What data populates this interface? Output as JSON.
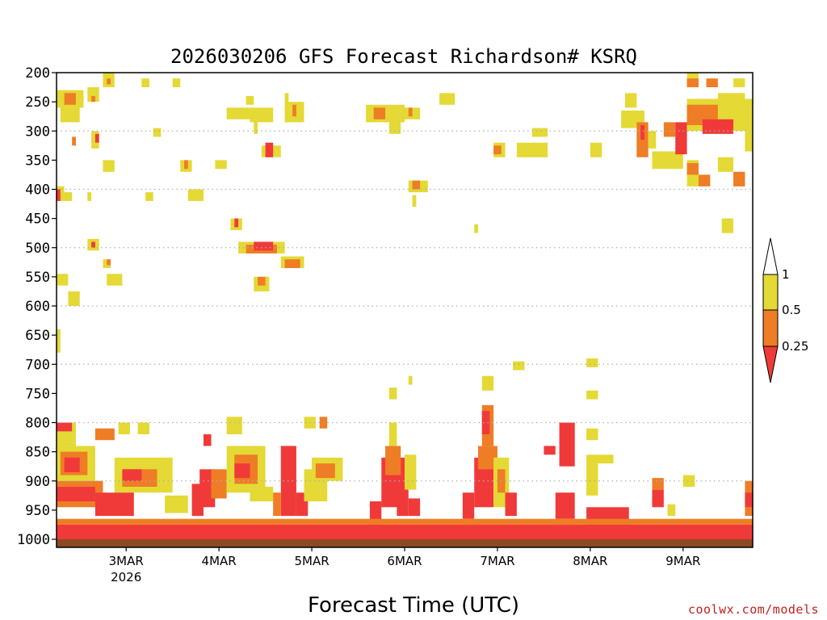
{
  "chart_data": {
    "type": "heatmap",
    "title": "2026030206 GFS Forecast Richardson# KSRQ",
    "xlabel": "Forecast Time (UTC)",
    "ylabel": "",
    "x_unit": "hours since 2026-03-02 06 UTC",
    "xlim": [
      0,
      180
    ],
    "x_ticks": [
      {
        "hour": 18,
        "label": "3MAR",
        "sub": "2026"
      },
      {
        "hour": 42,
        "label": "4MAR",
        "sub": ""
      },
      {
        "hour": 66,
        "label": "5MAR",
        "sub": ""
      },
      {
        "hour": 90,
        "label": "6MAR",
        "sub": ""
      },
      {
        "hour": 114,
        "label": "7MAR",
        "sub": ""
      },
      {
        "hour": 138,
        "label": "8MAR",
        "sub": ""
      },
      {
        "hour": 162,
        "label": "9MAR",
        "sub": ""
      }
    ],
    "y_unit": "hPa",
    "ylim": [
      200,
      1000
    ],
    "y_levels": [
      200,
      250,
      300,
      350,
      400,
      450,
      500,
      550,
      600,
      650,
      700,
      750,
      800,
      850,
      900,
      950,
      1000
    ],
    "y_gridlines": [
      300,
      400,
      500,
      600,
      700,
      800,
      900
    ],
    "legend": {
      "position": "right",
      "bins": [
        {
          "range": "< 0.25",
          "color": "#f03a3a"
        },
        {
          "range": "0.25 - 0.5",
          "color": "#ee7d26"
        },
        {
          "range": "0.5 - 1",
          "color": "#e4d935"
        },
        {
          "range": "> 1",
          "color": "#ffffff"
        }
      ],
      "labels": [
        "1",
        "0.5",
        "0.25"
      ]
    },
    "ground_color": "#8b4a24",
    "cells": [
      {
        "x0": 12,
        "x1": 15,
        "p0": 200,
        "p1": 225,
        "bin": "y"
      },
      {
        "x0": 13,
        "x1": 14,
        "p0": 210,
        "p1": 220,
        "bin": "o"
      },
      {
        "x0": 22,
        "x1": 24,
        "p0": 210,
        "p1": 225,
        "bin": "y"
      },
      {
        "x0": 30,
        "x1": 32,
        "p0": 210,
        "p1": 225,
        "bin": "y"
      },
      {
        "x0": 0,
        "x1": 7,
        "p0": 230,
        "p1": 260,
        "bin": "y"
      },
      {
        "x0": 2,
        "x1": 5,
        "p0": 235,
        "p1": 255,
        "bin": "o"
      },
      {
        "x0": 1,
        "x1": 6,
        "p0": 260,
        "p1": 285,
        "bin": "y"
      },
      {
        "x0": 8,
        "x1": 11,
        "p0": 225,
        "p1": 250,
        "bin": "y"
      },
      {
        "x0": 9,
        "x1": 10,
        "p0": 240,
        "p1": 250,
        "bin": "o"
      },
      {
        "x0": 25,
        "x1": 27,
        "p0": 295,
        "p1": 310,
        "bin": "y"
      },
      {
        "x0": 59,
        "x1": 60,
        "p0": 235,
        "p1": 250,
        "bin": "y"
      },
      {
        "x0": 59,
        "x1": 64,
        "p0": 250,
        "p1": 285,
        "bin": "y"
      },
      {
        "x0": 61,
        "x1": 62,
        "p0": 255,
        "p1": 275,
        "bin": "o"
      },
      {
        "x0": 44,
        "x1": 50,
        "p0": 260,
        "p1": 280,
        "bin": "y"
      },
      {
        "x0": 49,
        "x1": 51,
        "p0": 240,
        "p1": 255,
        "bin": "y"
      },
      {
        "x0": 50,
        "x1": 56,
        "p0": 260,
        "p1": 285,
        "bin": "y"
      },
      {
        "x0": 51,
        "x1": 52,
        "p0": 285,
        "p1": 305,
        "bin": "y"
      },
      {
        "x0": 53,
        "x1": 58,
        "p0": 325,
        "p1": 345,
        "bin": "y"
      },
      {
        "x0": 54,
        "x1": 56,
        "p0": 320,
        "p1": 345,
        "bin": "r"
      },
      {
        "x0": 80,
        "x1": 90,
        "p0": 255,
        "p1": 285,
        "bin": "y"
      },
      {
        "x0": 82,
        "x1": 85,
        "p0": 260,
        "p1": 280,
        "bin": "o"
      },
      {
        "x0": 86,
        "x1": 89,
        "p0": 285,
        "p1": 305,
        "bin": "y"
      },
      {
        "x0": 88,
        "x1": 94,
        "p0": 260,
        "p1": 280,
        "bin": "y"
      },
      {
        "x0": 91,
        "x1": 92,
        "p0": 260,
        "p1": 275,
        "bin": "o"
      },
      {
        "x0": 99,
        "x1": 103,
        "p0": 235,
        "p1": 255,
        "bin": "y"
      },
      {
        "x0": 123,
        "x1": 127,
        "p0": 295,
        "p1": 310,
        "bin": "y"
      },
      {
        "x0": 113,
        "x1": 116,
        "p0": 320,
        "p1": 345,
        "bin": "y"
      },
      {
        "x0": 113,
        "x1": 115,
        "p0": 325,
        "p1": 340,
        "bin": "o"
      },
      {
        "x0": 119,
        "x1": 127,
        "p0": 320,
        "p1": 345,
        "bin": "y"
      },
      {
        "x0": 138,
        "x1": 141,
        "p0": 320,
        "p1": 345,
        "bin": "y"
      },
      {
        "x0": 147,
        "x1": 150,
        "p0": 235,
        "p1": 260,
        "bin": "y"
      },
      {
        "x0": 146,
        "x1": 152,
        "p0": 265,
        "p1": 295,
        "bin": "y"
      },
      {
        "x0": 150,
        "x1": 153,
        "p0": 285,
        "p1": 345,
        "bin": "o"
      },
      {
        "x0": 151,
        "x1": 152,
        "p0": 290,
        "p1": 315,
        "bin": "r"
      },
      {
        "x0": 153,
        "x1": 155,
        "p0": 300,
        "p1": 330,
        "bin": "y"
      },
      {
        "x0": 154,
        "x1": 162,
        "p0": 335,
        "p1": 365,
        "bin": "y"
      },
      {
        "x0": 157,
        "x1": 160,
        "p0": 285,
        "p1": 310,
        "bin": "o"
      },
      {
        "x0": 160,
        "x1": 163,
        "p0": 285,
        "p1": 340,
        "bin": "r"
      },
      {
        "x0": 163,
        "x1": 180,
        "p0": 245,
        "p1": 300,
        "bin": "y"
      },
      {
        "x0": 163,
        "x1": 171,
        "p0": 255,
        "p1": 290,
        "bin": "o"
      },
      {
        "x0": 167,
        "x1": 175,
        "p0": 280,
        "p1": 305,
        "bin": "r"
      },
      {
        "x0": 163,
        "x1": 166,
        "p0": 200,
        "p1": 225,
        "bin": "y"
      },
      {
        "x0": 163,
        "x1": 166,
        "p0": 210,
        "p1": 225,
        "bin": "o"
      },
      {
        "x0": 168,
        "x1": 171,
        "p0": 210,
        "p1": 225,
        "bin": "o"
      },
      {
        "x0": 171,
        "x1": 178,
        "p0": 235,
        "p1": 255,
        "bin": "y"
      },
      {
        "x0": 175,
        "x1": 178,
        "p0": 210,
        "p1": 225,
        "bin": "y"
      },
      {
        "x0": 163,
        "x1": 166,
        "p0": 350,
        "p1": 395,
        "bin": "y"
      },
      {
        "x0": 163,
        "x1": 166,
        "p0": 355,
        "p1": 375,
        "bin": "o"
      },
      {
        "x0": 166,
        "x1": 169,
        "p0": 375,
        "p1": 395,
        "bin": "o"
      },
      {
        "x0": 171,
        "x1": 175,
        "p0": 345,
        "p1": 370,
        "bin": "y"
      },
      {
        "x0": 175,
        "x1": 178,
        "p0": 370,
        "p1": 395,
        "bin": "o"
      },
      {
        "x0": 172,
        "x1": 175,
        "p0": 450,
        "p1": 475,
        "bin": "y"
      },
      {
        "x0": 178,
        "x1": 180,
        "p0": 300,
        "p1": 335,
        "bin": "y"
      },
      {
        "x0": 9,
        "x1": 11,
        "p0": 300,
        "p1": 330,
        "bin": "y"
      },
      {
        "x0": 10,
        "x1": 11,
        "p0": 305,
        "p1": 320,
        "bin": "r"
      },
      {
        "x0": 4,
        "x1": 5,
        "p0": 310,
        "p1": 325,
        "bin": "o"
      },
      {
        "x0": 12,
        "x1": 15,
        "p0": 350,
        "p1": 370,
        "bin": "y"
      },
      {
        "x0": 32,
        "x1": 35,
        "p0": 350,
        "p1": 370,
        "bin": "y"
      },
      {
        "x0": 33,
        "x1": 34,
        "p0": 350,
        "p1": 365,
        "bin": "o"
      },
      {
        "x0": 41,
        "x1": 44,
        "p0": 350,
        "p1": 365,
        "bin": "y"
      },
      {
        "x0": 34,
        "x1": 38,
        "p0": 400,
        "p1": 420,
        "bin": "y"
      },
      {
        "x0": 23,
        "x1": 25,
        "p0": 405,
        "p1": 420,
        "bin": "y"
      },
      {
        "x0": 0,
        "x1": 2,
        "p0": 395,
        "p1": 420,
        "bin": "y"
      },
      {
        "x0": 0,
        "x1": 1,
        "p0": 400,
        "p1": 420,
        "bin": "r"
      },
      {
        "x0": 2,
        "x1": 4,
        "p0": 405,
        "p1": 420,
        "bin": "y"
      },
      {
        "x0": 8,
        "x1": 9,
        "p0": 405,
        "p1": 420,
        "bin": "y"
      },
      {
        "x0": 45,
        "x1": 48,
        "p0": 450,
        "p1": 470,
        "bin": "y"
      },
      {
        "x0": 46,
        "x1": 47,
        "p0": 450,
        "p1": 465,
        "bin": "r"
      },
      {
        "x0": 47,
        "x1": 59,
        "p0": 490,
        "p1": 510,
        "bin": "y"
      },
      {
        "x0": 49,
        "x1": 57,
        "p0": 495,
        "p1": 510,
        "bin": "o"
      },
      {
        "x0": 51,
        "x1": 56,
        "p0": 490,
        "p1": 505,
        "bin": "r"
      },
      {
        "x0": 58,
        "x1": 64,
        "p0": 515,
        "p1": 535,
        "bin": "y"
      },
      {
        "x0": 59,
        "x1": 63,
        "p0": 520,
        "p1": 535,
        "bin": "o"
      },
      {
        "x0": 51,
        "x1": 55,
        "p0": 550,
        "p1": 575,
        "bin": "y"
      },
      {
        "x0": 52,
        "x1": 54,
        "p0": 550,
        "p1": 565,
        "bin": "o"
      },
      {
        "x0": 8,
        "x1": 11,
        "p0": 485,
        "p1": 505,
        "bin": "y"
      },
      {
        "x0": 9,
        "x1": 10,
        "p0": 490,
        "p1": 500,
        "bin": "r"
      },
      {
        "x0": 12,
        "x1": 14,
        "p0": 520,
        "p1": 535,
        "bin": "y"
      },
      {
        "x0": 13,
        "x1": 14,
        "p0": 520,
        "p1": 530,
        "bin": "o"
      },
      {
        "x0": 13,
        "x1": 17,
        "p0": 545,
        "p1": 565,
        "bin": "y"
      },
      {
        "x0": 0,
        "x1": 3,
        "p0": 545,
        "p1": 565,
        "bin": "y"
      },
      {
        "x0": 3,
        "x1": 6,
        "p0": 575,
        "p1": 600,
        "bin": "y"
      },
      {
        "x0": 91,
        "x1": 96,
        "p0": 385,
        "p1": 405,
        "bin": "y"
      },
      {
        "x0": 92,
        "x1": 94,
        "p0": 385,
        "p1": 400,
        "bin": "o"
      },
      {
        "x0": 92,
        "x1": 93,
        "p0": 410,
        "p1": 430,
        "bin": "y"
      },
      {
        "x0": 108,
        "x1": 109,
        "p0": 460,
        "p1": 475,
        "bin": "y"
      },
      {
        "x0": 118,
        "x1": 121,
        "p0": 695,
        "p1": 710,
        "bin": "y"
      },
      {
        "x0": 137,
        "x1": 140,
        "p0": 690,
        "p1": 705,
        "bin": "y"
      },
      {
        "x0": 137,
        "x1": 140,
        "p0": 745,
        "p1": 760,
        "bin": "y"
      },
      {
        "x0": 110,
        "x1": 113,
        "p0": 720,
        "p1": 745,
        "bin": "y"
      },
      {
        "x0": 91,
        "x1": 92,
        "p0": 720,
        "p1": 735,
        "bin": "y"
      },
      {
        "x0": 0,
        "x1": 1,
        "p0": 640,
        "p1": 680,
        "bin": "y"
      },
      {
        "x0": 0,
        "x1": 5,
        "p0": 800,
        "p1": 840,
        "bin": "y"
      },
      {
        "x0": 0,
        "x1": 4,
        "p0": 800,
        "p1": 815,
        "bin": "r"
      },
      {
        "x0": 0,
        "x1": 10,
        "p0": 840,
        "p1": 900,
        "bin": "y"
      },
      {
        "x0": 1,
        "x1": 8,
        "p0": 850,
        "p1": 890,
        "bin": "o"
      },
      {
        "x0": 2,
        "x1": 6,
        "p0": 860,
        "p1": 885,
        "bin": "r"
      },
      {
        "x0": 0,
        "x1": 12,
        "p0": 900,
        "p1": 945,
        "bin": "o"
      },
      {
        "x0": 0,
        "x1": 10,
        "p0": 910,
        "p1": 935,
        "bin": "r"
      },
      {
        "x0": 10,
        "x1": 15,
        "p0": 810,
        "p1": 830,
        "bin": "o"
      },
      {
        "x0": 15,
        "x1": 30,
        "p0": 860,
        "p1": 920,
        "bin": "y"
      },
      {
        "x0": 17,
        "x1": 26,
        "p0": 880,
        "p1": 910,
        "bin": "o"
      },
      {
        "x0": 17,
        "x1": 22,
        "p0": 880,
        "p1": 900,
        "bin": "r"
      },
      {
        "x0": 10,
        "x1": 20,
        "p0": 920,
        "p1": 960,
        "bin": "r"
      },
      {
        "x0": 28,
        "x1": 34,
        "p0": 925,
        "p1": 955,
        "bin": "y"
      },
      {
        "x0": 16,
        "x1": 19,
        "p0": 800,
        "p1": 820,
        "bin": "y"
      },
      {
        "x0": 21,
        "x1": 24,
        "p0": 800,
        "p1": 820,
        "bin": "y"
      },
      {
        "x0": 35,
        "x1": 38,
        "p0": 905,
        "p1": 960,
        "bin": "r"
      },
      {
        "x0": 37,
        "x1": 41,
        "p0": 880,
        "p1": 945,
        "bin": "r"
      },
      {
        "x0": 40,
        "x1": 44,
        "p0": 880,
        "p1": 930,
        "bin": "o"
      },
      {
        "x0": 44,
        "x1": 54,
        "p0": 840,
        "p1": 920,
        "bin": "y"
      },
      {
        "x0": 46,
        "x1": 52,
        "p0": 855,
        "p1": 905,
        "bin": "o"
      },
      {
        "x0": 46,
        "x1": 50,
        "p0": 870,
        "p1": 895,
        "bin": "r"
      },
      {
        "x0": 50,
        "x1": 56,
        "p0": 910,
        "p1": 935,
        "bin": "y"
      },
      {
        "x0": 44,
        "x1": 48,
        "p0": 790,
        "p1": 820,
        "bin": "y"
      },
      {
        "x0": 38,
        "x1": 40,
        "p0": 820,
        "p1": 840,
        "bin": "r"
      },
      {
        "x0": 58,
        "x1": 62,
        "p0": 840,
        "p1": 960,
        "bin": "r"
      },
      {
        "x0": 56,
        "x1": 58,
        "p0": 920,
        "p1": 960,
        "bin": "o"
      },
      {
        "x0": 62,
        "x1": 65,
        "p0": 920,
        "p1": 960,
        "bin": "r"
      },
      {
        "x0": 64,
        "x1": 70,
        "p0": 880,
        "p1": 935,
        "bin": "y"
      },
      {
        "x0": 66,
        "x1": 74,
        "p0": 860,
        "p1": 900,
        "bin": "y"
      },
      {
        "x0": 67,
        "x1": 72,
        "p0": 870,
        "p1": 895,
        "bin": "o"
      },
      {
        "x0": 64,
        "x1": 67,
        "p0": 790,
        "p1": 810,
        "bin": "y"
      },
      {
        "x0": 68,
        "x1": 70,
        "p0": 790,
        "p1": 810,
        "bin": "o"
      },
      {
        "x0": 84,
        "x1": 90,
        "p0": 860,
        "p1": 945,
        "bin": "r"
      },
      {
        "x0": 85,
        "x1": 89,
        "p0": 840,
        "p1": 890,
        "bin": "o"
      },
      {
        "x0": 86,
        "x1": 88,
        "p0": 800,
        "p1": 840,
        "bin": "y"
      },
      {
        "x0": 88,
        "x1": 91,
        "p0": 900,
        "p1": 960,
        "bin": "r"
      },
      {
        "x0": 90,
        "x1": 93,
        "p0": 855,
        "p1": 915,
        "bin": "y"
      },
      {
        "x0": 81,
        "x1": 84,
        "p0": 935,
        "p1": 975,
        "bin": "r"
      },
      {
        "x0": 91,
        "x1": 94,
        "p0": 930,
        "p1": 960,
        "bin": "r"
      },
      {
        "x0": 86,
        "x1": 88,
        "p0": 740,
        "p1": 760,
        "bin": "y"
      },
      {
        "x0": 108,
        "x1": 113,
        "p0": 860,
        "p1": 945,
        "bin": "r"
      },
      {
        "x0": 109,
        "x1": 114,
        "p0": 840,
        "p1": 880,
        "bin": "o"
      },
      {
        "x0": 110,
        "x1": 113,
        "p0": 770,
        "p1": 840,
        "bin": "o"
      },
      {
        "x0": 110,
        "x1": 112,
        "p0": 780,
        "p1": 820,
        "bin": "r"
      },
      {
        "x0": 113,
        "x1": 117,
        "p0": 860,
        "p1": 945,
        "bin": "y"
      },
      {
        "x0": 114,
        "x1": 116,
        "p0": 880,
        "p1": 920,
        "bin": "o"
      },
      {
        "x0": 105,
        "x1": 108,
        "p0": 920,
        "p1": 965,
        "bin": "r"
      },
      {
        "x0": 116,
        "x1": 119,
        "p0": 920,
        "p1": 960,
        "bin": "r"
      },
      {
        "x0": 130,
        "x1": 134,
        "p0": 800,
        "p1": 875,
        "bin": "r"
      },
      {
        "x0": 126,
        "x1": 129,
        "p0": 840,
        "p1": 855,
        "bin": "r"
      },
      {
        "x0": 137,
        "x1": 140,
        "p0": 810,
        "p1": 830,
        "bin": "y"
      },
      {
        "x0": 137,
        "x1": 144,
        "p0": 855,
        "p1": 870,
        "bin": "y"
      },
      {
        "x0": 137,
        "x1": 140,
        "p0": 870,
        "p1": 925,
        "bin": "y"
      },
      {
        "x0": 129,
        "x1": 134,
        "p0": 920,
        "p1": 965,
        "bin": "r"
      },
      {
        "x0": 137,
        "x1": 148,
        "p0": 945,
        "p1": 980,
        "bin": "r"
      },
      {
        "x0": 154,
        "x1": 157,
        "p0": 915,
        "p1": 945,
        "bin": "r"
      },
      {
        "x0": 154,
        "x1": 157,
        "p0": 895,
        "p1": 915,
        "bin": "o"
      },
      {
        "x0": 158,
        "x1": 160,
        "p0": 940,
        "p1": 960,
        "bin": "y"
      },
      {
        "x0": 162,
        "x1": 165,
        "p0": 890,
        "p1": 910,
        "bin": "y"
      },
      {
        "x0": 178,
        "x1": 180,
        "p0": 900,
        "p1": 960,
        "bin": "o"
      },
      {
        "x0": 178,
        "x1": 180,
        "p0": 920,
        "p1": 945,
        "bin": "r"
      },
      {
        "x0": 0,
        "x1": 180,
        "p0": 975,
        "p1": 1000,
        "bin": "r"
      },
      {
        "x0": 0,
        "x1": 180,
        "p0": 965,
        "p1": 975,
        "bin": "o"
      }
    ]
  },
  "footer": {
    "credit": "coolwx.com/models"
  }
}
